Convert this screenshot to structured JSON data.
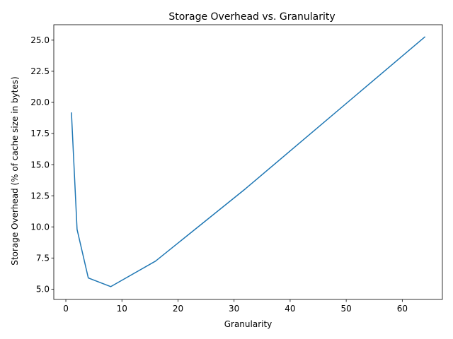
{
  "chart_data": {
    "type": "line",
    "title": "Storage Overhead vs. Granularity",
    "xlabel": "Granularity",
    "ylabel": "Storage Overhead (% of cache size in bytes)",
    "xlim": [
      -2.15,
      67.15
    ],
    "ylim": [
      4.17,
      26.24
    ],
    "x_ticks": [
      0,
      10,
      20,
      30,
      40,
      50,
      60
    ],
    "x_tick_labels": [
      "0",
      "10",
      "20",
      "30",
      "40",
      "50",
      "60"
    ],
    "y_ticks": [
      5.0,
      7.5,
      10.0,
      12.5,
      15.0,
      17.5,
      20.0,
      22.5,
      25.0
    ],
    "y_tick_labels": [
      "5.0",
      "7.5",
      "10.0",
      "12.5",
      "15.0",
      "17.5",
      "20.0",
      "22.5",
      "25.0"
    ],
    "grid": false,
    "series": [
      {
        "color": "#1f77b4",
        "x": [
          1,
          2,
          4,
          8,
          16,
          32,
          64
        ],
        "y": [
          19.15,
          9.8,
          5.9,
          5.2,
          7.25,
          13.05,
          25.25
        ]
      }
    ]
  }
}
